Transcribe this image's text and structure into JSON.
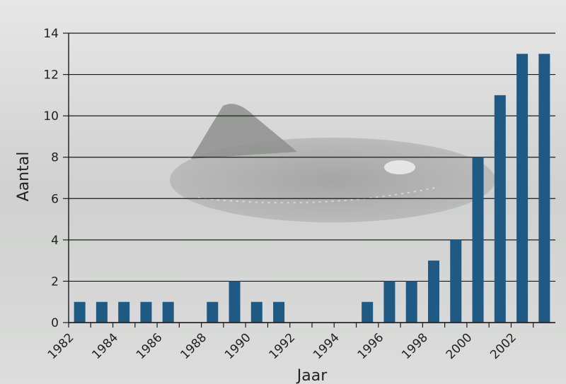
{
  "chart_data": {
    "type": "bar",
    "categories": [
      "1982",
      "1983",
      "1984",
      "1985",
      "1986",
      "1987",
      "1988",
      "1989",
      "1990",
      "1991",
      "1992",
      "1993",
      "1994",
      "1995",
      "1996",
      "1997",
      "1998",
      "1999",
      "2000",
      "2001",
      "2002",
      "2003"
    ],
    "values": [
      1,
      1,
      1,
      1,
      1,
      0,
      1,
      2,
      1,
      1,
      0,
      0,
      0,
      1,
      2,
      2,
      3,
      4,
      8,
      11,
      13,
      13
    ],
    "xtick_labels": [
      "1982",
      "1984",
      "1986",
      "1988",
      "1990",
      "1992",
      "1994",
      "1996",
      "1998",
      "2000",
      "2002"
    ],
    "yticks": [
      0,
      2,
      4,
      6,
      8,
      10,
      12,
      14
    ],
    "ylim": [
      0,
      14
    ],
    "xlabel": "Jaar",
    "ylabel": "Aantal",
    "grid": "horizontal",
    "bar_color": "#1f5a85",
    "background": "photo of a porpoise fin in grey water"
  }
}
